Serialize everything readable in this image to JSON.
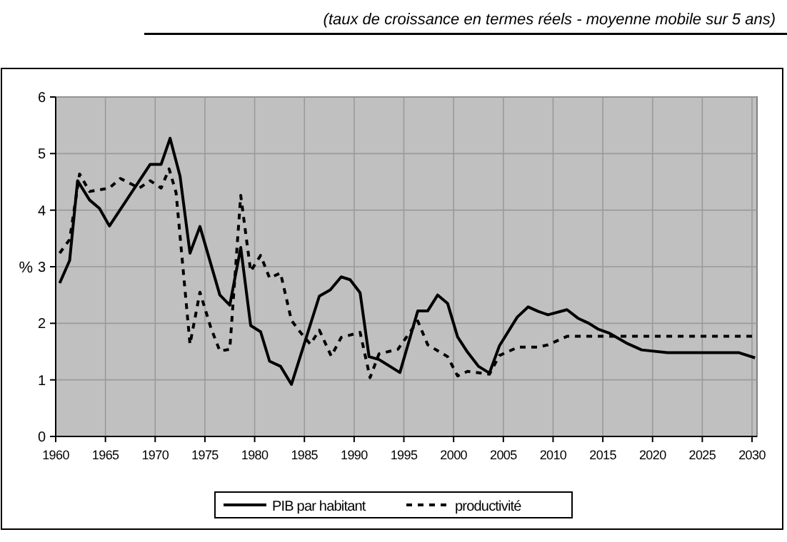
{
  "chart_data": {
    "type": "line",
    "title": "(taux de croissance en termes réels - moyenne mobile sur 5 ans)",
    "ylabel": "%",
    "xlim": [
      1960,
      2030.5
    ],
    "xticks": [
      1960,
      1965,
      1970,
      1975,
      1980,
      1985,
      1990,
      1995,
      2000,
      2005,
      2010,
      2015,
      2020,
      2025,
      2030
    ],
    "ylim": [
      0,
      6
    ],
    "yticks": [
      0,
      1,
      2,
      3,
      4,
      5,
      6
    ],
    "grid": true,
    "legend": "bottom",
    "marker": "none",
    "series": [
      {
        "name": "PIB par habitant",
        "color": "#000000",
        "line_style": "solid",
        "x": [
          1960.4,
          1961.4,
          1962.2,
          1963.4,
          1964.4,
          1965.4,
          1969.5,
          1970.6,
          1971.5,
          1972.5,
          1973.5,
          1974.5,
          1976.5,
          1977.5,
          1978.6,
          1979.6,
          1980.6,
          1981.5,
          1982.6,
          1983.7,
          1986.5,
          1987.6,
          1988.7,
          1989.6,
          1990.6,
          1991.5,
          1992.5,
          1994.6,
          1996.4,
          1997.4,
          1998.4,
          1999.4,
          2000.4,
          2001.4,
          2002.5,
          2003.6,
          2004.6,
          2006.4,
          2007.5,
          2008.5,
          2009.5,
          2011.4,
          2012.5,
          2013.6,
          2014.5,
          2015.6,
          2017.5,
          2018.9,
          2021.5,
          2028.7,
          2030.3
        ],
        "values": [
          2.71,
          3.11,
          4.52,
          4.18,
          4.03,
          3.72,
          4.81,
          4.81,
          5.27,
          4.6,
          3.24,
          3.71,
          2.5,
          2.32,
          3.34,
          1.96,
          1.85,
          1.33,
          1.24,
          0.92,
          2.48,
          2.59,
          2.82,
          2.77,
          2.54,
          1.41,
          1.36,
          1.13,
          2.22,
          2.22,
          2.5,
          2.35,
          1.76,
          1.49,
          1.24,
          1.12,
          1.6,
          2.11,
          2.29,
          2.21,
          2.15,
          2.24,
          2.09,
          2.0,
          1.9,
          1.83,
          1.64,
          1.53,
          1.48,
          1.48,
          1.39
        ]
      },
      {
        "name": "productivité",
        "color": "#000000",
        "line_style": "dotted",
        "x": [
          1960.4,
          1961.4,
          1962.4,
          1963.4,
          1965.4,
          1966.5,
          1968.4,
          1969.5,
          1970.6,
          1971.4,
          1972.1,
          1973.5,
          1974.5,
          1975.6,
          1976.5,
          1977.5,
          1978.6,
          1979.6,
          1980.6,
          1981.5,
          1982.6,
          1983.7,
          1984.6,
          1985.6,
          1986.5,
          1987.7,
          1988.7,
          1990.6,
          1991.6,
          1992.5,
          1994.4,
          1996.4,
          1997.4,
          1999.4,
          2000.4,
          2001.4,
          2003.6,
          2004.6,
          2006.5,
          2008.5,
          2009.5,
          2011.4,
          2030.1
        ],
        "values": [
          3.24,
          3.48,
          4.64,
          4.33,
          4.39,
          4.56,
          4.39,
          4.52,
          4.39,
          4.73,
          4.31,
          1.63,
          2.55,
          1.92,
          1.51,
          1.54,
          4.26,
          2.92,
          3.2,
          2.8,
          2.89,
          2.05,
          1.84,
          1.63,
          1.88,
          1.42,
          1.75,
          1.84,
          1.04,
          1.46,
          1.54,
          2.04,
          1.62,
          1.41,
          1.07,
          1.15,
          1.1,
          1.43,
          1.58,
          1.58,
          1.62,
          1.77,
          1.77
        ]
      }
    ]
  }
}
